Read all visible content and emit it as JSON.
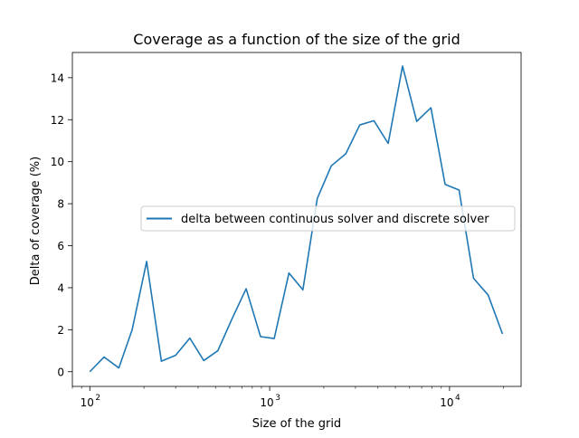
{
  "chart_data": {
    "type": "line",
    "title": "Coverage as a function of the size of the grid",
    "xlabel": "Size of the grid",
    "ylabel": "Delta of coverage (%)",
    "x_scale": "log",
    "xlim": [
      80,
      25000
    ],
    "ylim": [
      -0.7,
      15.2
    ],
    "x_ticks": [
      {
        "value": 100,
        "base": "10",
        "exp": "2"
      },
      {
        "value": 1000,
        "base": "10",
        "exp": "3"
      },
      {
        "value": 10000,
        "base": "10",
        "exp": "4"
      }
    ],
    "y_ticks": [
      0,
      2,
      4,
      6,
      8,
      10,
      12,
      14
    ],
    "grid": false,
    "legend_position": "center-right",
    "series": [
      {
        "name": "delta between continuous solver and discrete solver",
        "color": "#1f77b4",
        "x": [
          100,
          120,
          145,
          172,
          207,
          250,
          300,
          360,
          430,
          515,
          620,
          740,
          890,
          1060,
          1280,
          1530,
          1840,
          2200,
          2650,
          3170,
          3800,
          4560,
          5480,
          6570,
          7880,
          9450,
          11300,
          13600,
          16400,
          19700
        ],
        "y": [
          0.0,
          0.7,
          0.18,
          2.0,
          5.25,
          0.5,
          0.78,
          1.6,
          0.53,
          1.0,
          2.55,
          3.95,
          1.67,
          1.58,
          4.7,
          3.9,
          8.25,
          9.8,
          10.38,
          11.75,
          11.95,
          10.87,
          14.55,
          11.92,
          12.57,
          8.92,
          8.65,
          4.45,
          3.65,
          1.8
        ]
      }
    ]
  }
}
